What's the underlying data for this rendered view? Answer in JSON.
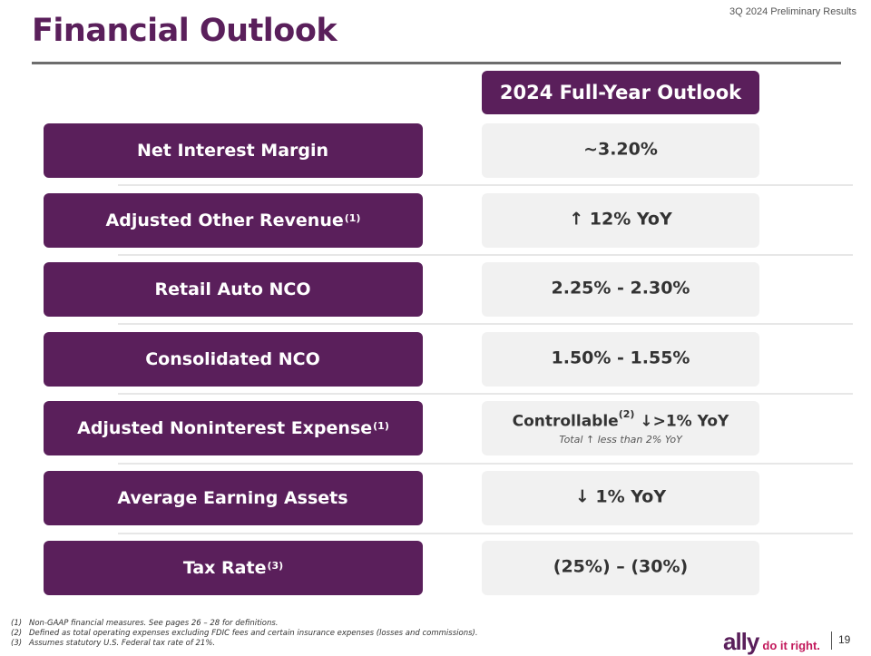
{
  "header": {
    "slide_tag": "3Q 2024 Preliminary Results",
    "title": "Financial Outlook",
    "column_header": "2024 Full-Year Outlook"
  },
  "rows": [
    {
      "label": "Net Interest Margin",
      "label_sup": "",
      "value": "~3.20%",
      "value_sup": "",
      "value_tail": "",
      "value_sub": ""
    },
    {
      "label": "Adjusted Other Revenue",
      "label_sup": "(1)",
      "value": "↑ 12% YoY",
      "value_sup": "",
      "value_tail": "",
      "value_sub": ""
    },
    {
      "label": "Retail Auto NCO",
      "label_sup": "",
      "value": "2.25% - 2.30%",
      "value_sup": "",
      "value_tail": "",
      "value_sub": ""
    },
    {
      "label": "Consolidated NCO",
      "label_sup": "",
      "value": "1.50% - 1.55%",
      "value_sup": "",
      "value_tail": "",
      "value_sub": ""
    },
    {
      "label": "Adjusted Noninterest Expense",
      "label_sup": "(1)",
      "value": "Controllable",
      "value_sup": "(2)",
      "value_tail": " ↓>1% YoY",
      "value_sub": "Total ↑ less than 2% YoY"
    },
    {
      "label": "Average Earning Assets",
      "label_sup": "",
      "value": "↓ 1% YoY",
      "value_sup": "",
      "value_tail": "",
      "value_sub": ""
    },
    {
      "label": "Tax Rate",
      "label_sup": "(3)",
      "value": "(25%) – (30%)",
      "value_sup": "",
      "value_tail": "",
      "value_sub": ""
    }
  ],
  "footnotes": [
    {
      "num": "(1)",
      "text": "Non-GAAP financial measures. See pages 26 – 28 for definitions."
    },
    {
      "num": "(2)",
      "text": "Defined as total operating expenses excluding FDIC fees and certain insurance expenses (losses and commissions)."
    },
    {
      "num": "(3)",
      "text": "Assumes statutory U.S. Federal tax rate of 21%."
    }
  ],
  "footer": {
    "brand": "ally",
    "tagline": "do it right.",
    "page_number": "19"
  },
  "colors": {
    "brand_purple": "#5a1f5b",
    "value_bg": "#f1f1f1",
    "tagline_pink": "#c2185b"
  }
}
